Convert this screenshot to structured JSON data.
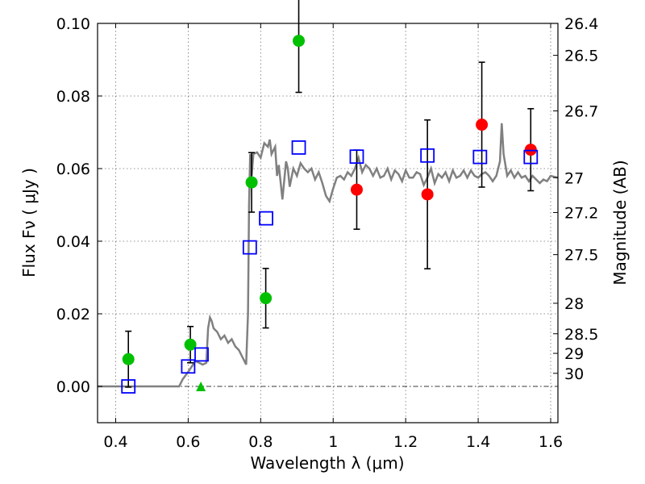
{
  "chart_data": {
    "type": "scatter",
    "xlabel": "Wavelength  λ (μm)",
    "ylabel": "Flux  Fν  ( μJy )",
    "ylabel_right": "Magnitude (AB)",
    "xlim": [
      0.35,
      1.62
    ],
    "ylim": [
      -0.01,
      0.1
    ],
    "grid": true,
    "x_ticks": [
      0.4,
      0.6,
      0.8,
      1.0,
      1.2,
      1.4,
      1.6
    ],
    "x_tick_labels": [
      "0.4",
      "0.6",
      "0.8",
      "1",
      "1.2",
      "1.4",
      "1.6"
    ],
    "y_ticks": [
      0.0,
      0.02,
      0.04,
      0.06,
      0.08,
      0.1
    ],
    "y_tick_labels": [
      "0.00",
      "0.02",
      "0.04",
      "0.06",
      "0.08",
      "0.10"
    ],
    "right_ticks": [
      {
        "label": "26.4",
        "flux": 0.1
      },
      {
        "label": "26.5",
        "flux": 0.0912
      },
      {
        "label": "26.7",
        "flux": 0.0759
      },
      {
        "label": "27",
        "flux": 0.0575
      },
      {
        "label": "27.2",
        "flux": 0.0479
      },
      {
        "label": "27.5",
        "flux": 0.0363
      },
      {
        "label": "28",
        "flux": 0.0229
      },
      {
        "label": "28.5",
        "flux": 0.0145
      },
      {
        "label": "29",
        "flux": 0.0091
      },
      {
        "label": "30",
        "flux": 0.0036
      }
    ],
    "colors": {
      "green": "#00c000",
      "red": "#ff0000",
      "blue": "#0000ff",
      "model": "#808080"
    },
    "series": [
      {
        "marker": "circle",
        "color": "green",
        "points": [
          {
            "x": 0.435,
            "y": 0.0075,
            "err": 0.0077
          },
          {
            "x": 0.606,
            "y": 0.0115,
            "err": 0.005
          },
          {
            "x": 0.775,
            "y": 0.0562,
            "err": 0.0082
          },
          {
            "x": 0.814,
            "y": 0.0243,
            "err": 0.0082
          },
          {
            "x": 0.905,
            "y": 0.0952,
            "err": 0.0142
          }
        ]
      },
      {
        "marker": "triangle",
        "color": "green",
        "points": [
          {
            "x": 0.635,
            "y": 0.0
          }
        ]
      },
      {
        "marker": "circle",
        "color": "red",
        "points": [
          {
            "x": 1.065,
            "y": 0.0542,
            "err": 0.0109
          },
          {
            "x": 1.26,
            "y": 0.0529,
            "err": 0.0205
          },
          {
            "x": 1.41,
            "y": 0.0721,
            "err": 0.0172
          },
          {
            "x": 1.545,
            "y": 0.0652,
            "err": 0.0113
          }
        ]
      },
      {
        "marker": "square",
        "color": "blue",
        "points": [
          {
            "x": 0.435,
            "y": 0.0
          },
          {
            "x": 0.6,
            "y": 0.0055
          },
          {
            "x": 0.637,
            "y": 0.0088
          },
          {
            "x": 0.77,
            "y": 0.0383
          },
          {
            "x": 0.815,
            "y": 0.0463
          },
          {
            "x": 0.905,
            "y": 0.0658
          },
          {
            "x": 1.065,
            "y": 0.0633
          },
          {
            "x": 1.26,
            "y": 0.0636
          },
          {
            "x": 1.405,
            "y": 0.0632
          },
          {
            "x": 1.545,
            "y": 0.0632
          }
        ]
      }
    ],
    "model_spectrum": {
      "color": "model",
      "x": [
        0.35,
        0.575,
        0.585,
        0.6,
        0.62,
        0.64,
        0.65,
        0.655,
        0.66,
        0.665,
        0.67,
        0.68,
        0.69,
        0.7,
        0.71,
        0.72,
        0.73,
        0.74,
        0.75,
        0.755,
        0.76,
        0.765,
        0.768,
        0.771,
        0.775,
        0.78,
        0.79,
        0.8,
        0.81,
        0.82,
        0.825,
        0.83,
        0.84,
        0.845,
        0.85,
        0.86,
        0.87,
        0.875,
        0.88,
        0.89,
        0.9,
        0.91,
        0.92,
        0.93,
        0.94,
        0.95,
        0.96,
        0.97,
        0.98,
        0.99,
        1.0,
        1.01,
        1.02,
        1.03,
        1.04,
        1.05,
        1.06,
        1.07,
        1.08,
        1.09,
        1.1,
        1.11,
        1.12,
        1.13,
        1.14,
        1.15,
        1.16,
        1.17,
        1.18,
        1.19,
        1.2,
        1.21,
        1.22,
        1.23,
        1.24,
        1.25,
        1.26,
        1.27,
        1.28,
        1.29,
        1.3,
        1.31,
        1.32,
        1.33,
        1.34,
        1.35,
        1.36,
        1.37,
        1.38,
        1.39,
        1.4,
        1.41,
        1.42,
        1.43,
        1.44,
        1.45,
        1.46,
        1.465,
        1.47,
        1.48,
        1.49,
        1.5,
        1.51,
        1.52,
        1.53,
        1.54,
        1.55,
        1.56,
        1.57,
        1.58,
        1.59,
        1.6,
        1.62
      ],
      "y": [
        0.0,
        0.0,
        0.002,
        0.004,
        0.007,
        0.006,
        0.0065,
        0.016,
        0.019,
        0.018,
        0.016,
        0.015,
        0.013,
        0.014,
        0.012,
        0.013,
        0.011,
        0.01,
        0.008,
        0.007,
        0.006,
        0.02,
        0.05,
        0.064,
        0.058,
        0.064,
        0.0645,
        0.063,
        0.067,
        0.066,
        0.068,
        0.064,
        0.066,
        0.058,
        0.061,
        0.0515,
        0.062,
        0.06,
        0.055,
        0.06,
        0.058,
        0.0615,
        0.06,
        0.059,
        0.06,
        0.057,
        0.059,
        0.056,
        0.0525,
        0.051,
        0.0545,
        0.0575,
        0.058,
        0.057,
        0.059,
        0.058,
        0.06,
        0.063,
        0.059,
        0.061,
        0.06,
        0.058,
        0.06,
        0.0575,
        0.058,
        0.06,
        0.057,
        0.0595,
        0.0585,
        0.0565,
        0.0595,
        0.0575,
        0.0575,
        0.059,
        0.0585,
        0.0555,
        0.0575,
        0.06,
        0.056,
        0.0585,
        0.0575,
        0.059,
        0.0565,
        0.0595,
        0.0575,
        0.058,
        0.0595,
        0.0575,
        0.0595,
        0.058,
        0.0575,
        0.0585,
        0.059,
        0.058,
        0.0565,
        0.058,
        0.062,
        0.0725,
        0.064,
        0.058,
        0.0595,
        0.0575,
        0.059,
        0.0575,
        0.058,
        0.0565,
        0.058,
        0.057,
        0.056,
        0.057,
        0.0565,
        0.058,
        0.0575
      ]
    },
    "reference_line": {
      "y": 0.0,
      "style": "dash-dot"
    }
  }
}
